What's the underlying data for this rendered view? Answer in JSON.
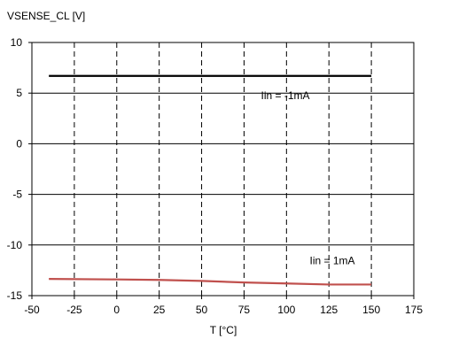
{
  "chart_data": {
    "type": "line",
    "ylabel": "VSENSE_CL [V]",
    "xlabel": "T [°C]",
    "xlim": [
      -50,
      175
    ],
    "ylim": [
      -15,
      10
    ],
    "x_ticks": [
      -50,
      -25,
      0,
      25,
      50,
      75,
      100,
      125,
      150,
      175
    ],
    "y_ticks": [
      10,
      5,
      0,
      -5,
      -10,
      -15
    ],
    "grid": true,
    "series": [
      {
        "name": "Iin = -1mA",
        "color": "#000000",
        "x": [
          -40,
          0,
          25,
          50,
          75,
          100,
          125,
          150
        ],
        "y": [
          6.7,
          6.7,
          6.7,
          6.7,
          6.7,
          6.7,
          6.7,
          6.7
        ]
      },
      {
        "name": "Iin = 1mA",
        "color": "#c0504d",
        "x": [
          -40,
          0,
          25,
          50,
          75,
          100,
          125,
          150
        ],
        "y": [
          -13.35,
          -13.4,
          -13.45,
          -13.55,
          -13.7,
          -13.8,
          -13.9,
          -13.9
        ]
      }
    ]
  }
}
